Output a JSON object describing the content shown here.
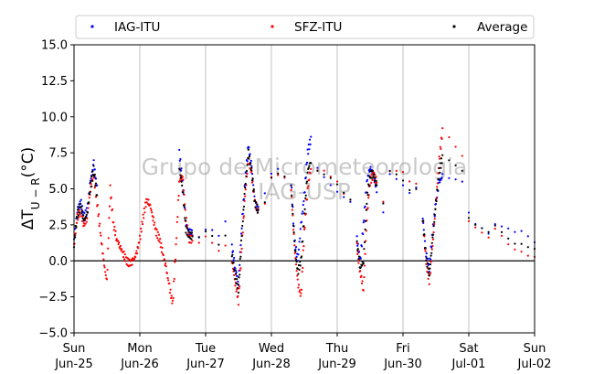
{
  "chart_data": {
    "type": "scatter",
    "ylabel": "ΔT_{U−R}(°C)",
    "ylim": [
      -5,
      15
    ],
    "yticks": [
      "−5.0",
      "−2.5",
      "0.0",
      "2.5",
      "5.0",
      "7.5",
      "10.0",
      "12.5",
      "15.0"
    ],
    "xlim": [
      "2017-06-25",
      "2017-07-02"
    ],
    "xticks": [
      {
        "day": "Sun",
        "date": "Jun-25"
      },
      {
        "day": "Mon",
        "date": "Jun-26"
      },
      {
        "day": "Tue",
        "date": "Jun-27"
      },
      {
        "day": "Wed",
        "date": "Jun-28"
      },
      {
        "day": "Thu",
        "date": "Jun-29"
      },
      {
        "day": "Fri",
        "date": "Jun-30"
      },
      {
        "day": "Sat",
        "date": "Jul-01"
      },
      {
        "day": "Sun",
        "date": "Jul-02"
      }
    ],
    "hline": 0,
    "grid": "vertical",
    "legend_position": "top",
    "watermark": [
      "Grupo de Micrometeorologia",
      "IAG-USP"
    ],
    "series": [
      {
        "name": "IAG-ITU",
        "color": "#0000ff",
        "x": [
          0.0,
          0.05,
          0.1,
          0.15,
          0.2,
          0.25,
          0.3,
          0.35,
          1.6,
          1.65,
          1.7,
          1.75,
          1.8,
          1.9,
          2.0,
          2.1,
          2.2,
          2.3,
          2.4,
          2.45,
          2.5,
          2.55,
          2.6,
          2.65,
          2.7,
          2.75,
          2.8,
          2.9,
          3.0,
          3.1,
          3.2,
          3.3,
          3.35,
          3.4,
          3.45,
          3.5,
          3.55,
          3.6,
          3.7,
          3.8,
          3.9,
          4.0,
          4.1,
          4.2,
          4.3,
          4.35,
          4.4,
          4.45,
          4.5,
          4.55,
          4.6,
          4.7,
          4.8,
          4.9,
          5.0,
          5.1,
          5.2,
          5.3,
          5.35,
          5.4,
          5.45,
          5.5,
          5.55,
          5.6,
          5.7,
          5.8,
          5.9,
          6.0,
          6.1,
          6.2,
          6.3,
          6.4,
          6.5,
          6.6,
          6.7,
          6.8,
          6.9,
          7.0
        ],
        "y": [
          1.5,
          3.5,
          4.2,
          3.0,
          3.5,
          5.5,
          6.8,
          5.0,
          7.5,
          5.5,
          2.5,
          2.0,
          2.0,
          1.8,
          2.2,
          2.0,
          1.5,
          2.5,
          1.0,
          -0.5,
          -1.5,
          2.5,
          5.5,
          8.0,
          6.5,
          4.0,
          3.5,
          4.5,
          6.0,
          6.5,
          6.0,
          5.5,
          1.5,
          0.0,
          2.5,
          4.5,
          7.5,
          8.5,
          6.5,
          6.0,
          5.5,
          5.0,
          4.5,
          4.0,
          1.5,
          0.0,
          2.5,
          5.5,
          6.5,
          6.0,
          5.0,
          3.5,
          6.0,
          5.5,
          5.0,
          4.5,
          5.0,
          3.0,
          0.5,
          -0.5,
          2.0,
          4.0,
          5.5,
          5.8,
          5.5,
          5.5,
          5.5,
          3.5,
          2.8,
          2.5,
          2.0,
          2.5,
          2.2,
          2.0,
          1.8,
          2.0,
          1.8,
          1.5
        ]
      },
      {
        "name": "SFZ-ITU",
        "color": "#ff0000",
        "x": [
          0.0,
          0.05,
          0.1,
          0.15,
          0.2,
          0.25,
          0.3,
          0.35,
          0.4,
          0.45,
          0.5,
          0.55,
          0.6,
          0.65,
          0.7,
          0.75,
          0.8,
          0.85,
          0.9,
          0.95,
          1.0,
          1.05,
          1.1,
          1.15,
          1.2,
          1.25,
          1.3,
          1.35,
          1.4,
          1.45,
          1.5,
          1.55,
          1.6,
          1.65,
          1.7,
          1.75,
          1.8,
          1.9,
          2.0,
          2.1,
          2.2,
          2.3,
          2.4,
          2.45,
          2.5,
          2.55,
          2.6,
          2.65,
          2.7,
          2.75,
          2.8,
          2.9,
          3.0,
          3.1,
          3.2,
          3.3,
          3.35,
          3.4,
          3.45,
          3.5,
          3.55,
          3.6,
          3.7,
          3.8,
          3.9,
          4.0,
          4.1,
          4.2,
          4.3,
          4.35,
          4.4,
          4.45,
          4.5,
          4.55,
          4.6,
          4.7,
          4.8,
          4.9,
          5.0,
          5.1,
          5.2,
          5.3,
          5.35,
          5.4,
          5.45,
          5.5,
          5.55,
          5.6,
          5.7,
          5.8,
          5.9,
          6.0,
          6.1,
          6.2,
          6.3,
          6.4,
          6.5,
          6.6,
          6.7,
          6.8,
          6.9,
          7.0
        ],
        "y": [
          1.0,
          3.0,
          3.5,
          2.5,
          3.0,
          5.0,
          6.0,
          4.0,
          2.0,
          0.0,
          -1.5,
          5.0,
          2.5,
          1.5,
          1.0,
          0.5,
          0.0,
          -0.2,
          0.0,
          0.5,
          1.5,
          3.0,
          4.2,
          4.0,
          3.0,
          2.0,
          1.5,
          0.5,
          -0.5,
          -1.8,
          -3.0,
          1.0,
          5.5,
          6.0,
          3.0,
          1.5,
          1.5,
          1.2,
          1.5,
          1.0,
          0.5,
          1.0,
          0.0,
          -1.5,
          -2.8,
          1.0,
          4.5,
          7.0,
          6.0,
          4.0,
          3.5,
          4.0,
          6.0,
          6.2,
          6.0,
          5.0,
          1.0,
          -1.5,
          -2.5,
          2.0,
          5.0,
          6.5,
          6.5,
          6.5,
          6.0,
          5.5,
          4.5,
          4.0,
          1.0,
          -0.8,
          -2.0,
          3.0,
          5.5,
          6.0,
          5.5,
          4.0,
          6.0,
          6.0,
          6.0,
          5.5,
          5.5,
          3.0,
          0.0,
          -1.5,
          1.0,
          4.0,
          7.0,
          9.0,
          8.5,
          8.0,
          7.5,
          3.0,
          2.5,
          2.0,
          1.5,
          2.0,
          1.5,
          1.0,
          0.8,
          0.8,
          0.6,
          0.5
        ]
      },
      {
        "name": "Average",
        "color": "#000000",
        "x": [
          0.0,
          0.05,
          0.1,
          0.15,
          0.2,
          0.25,
          0.3,
          0.35,
          1.6,
          1.65,
          1.7,
          1.75,
          1.8,
          1.9,
          2.0,
          2.1,
          2.2,
          2.3,
          2.4,
          2.45,
          2.5,
          2.55,
          2.6,
          2.65,
          2.7,
          2.75,
          2.8,
          2.9,
          3.0,
          3.1,
          3.2,
          3.3,
          3.35,
          3.4,
          3.45,
          3.5,
          3.55,
          3.6,
          3.7,
          3.8,
          3.9,
          4.0,
          4.1,
          4.2,
          4.3,
          4.35,
          4.4,
          4.45,
          4.5,
          4.55,
          4.6,
          4.7,
          4.8,
          4.9,
          5.0,
          5.1,
          5.2,
          5.3,
          5.35,
          5.4,
          5.45,
          5.5,
          5.55,
          5.6,
          5.7,
          5.8,
          5.9,
          6.0,
          6.1,
          6.2,
          6.3,
          6.4,
          6.5,
          6.6,
          6.7,
          6.8,
          6.9,
          7.0
        ],
        "y": [
          1.2,
          3.2,
          3.8,
          2.8,
          3.2,
          5.2,
          6.4,
          4.5,
          6.5,
          5.0,
          2.2,
          1.8,
          1.7,
          1.5,
          1.8,
          1.5,
          1.0,
          1.8,
          0.5,
          -1.0,
          -2.0,
          1.8,
          5.0,
          7.5,
          6.2,
          4.0,
          3.5,
          4.2,
          6.0,
          6.3,
          6.0,
          5.2,
          1.2,
          -0.8,
          0.0,
          3.2,
          6.2,
          7.0,
          6.5,
          6.2,
          5.8,
          5.2,
          4.5,
          4.0,
          1.2,
          -0.5,
          0.0,
          4.2,
          6.0,
          6.0,
          5.2,
          3.8,
          6.0,
          5.8,
          5.5,
          5.0,
          5.2,
          3.0,
          0.2,
          -1.0,
          1.5,
          4.0,
          6.2,
          7.2,
          7.0,
          6.8,
          6.5,
          3.2,
          2.6,
          2.2,
          1.8,
          2.2,
          1.8,
          1.5,
          1.3,
          1.4,
          1.2,
          1.0
        ]
      }
    ]
  }
}
